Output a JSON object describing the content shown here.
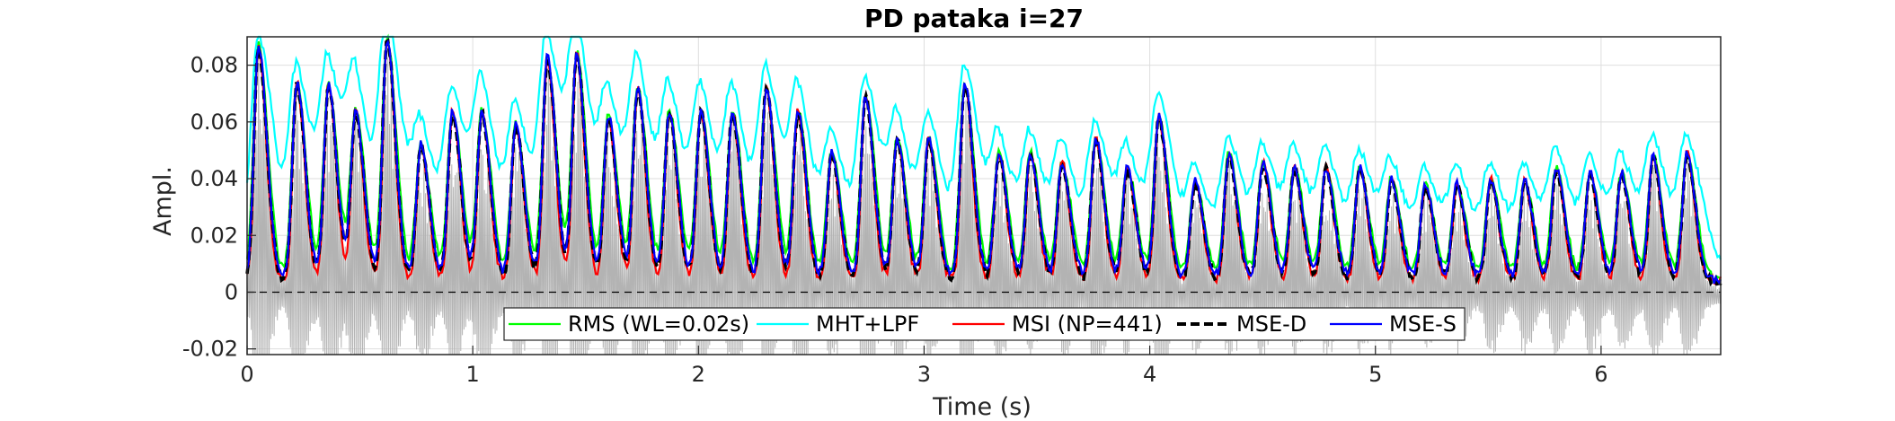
{
  "chart_data": {
    "type": "line",
    "title": "PD pataka i=27",
    "xlabel": "Time (s)",
    "ylabel": "Ampl.",
    "xlim": [
      0,
      6.53
    ],
    "ylim": [
      -0.022,
      0.09
    ],
    "x_ticks": [
      0,
      1,
      2,
      3,
      4,
      5,
      6
    ],
    "x_tick_labels": [
      "0",
      "1",
      "2",
      "3",
      "4",
      "5",
      "6"
    ],
    "y_ticks": [
      -0.02,
      0,
      0.02,
      0.04,
      0.06,
      0.08
    ],
    "y_tick_labels": [
      "-0.02",
      "0",
      "0.02",
      "0.04",
      "0.06",
      "0.08"
    ],
    "grid": true,
    "legend_position": "bottom-center",
    "zero_line": {
      "y": 0,
      "style": "dashed",
      "color": "#000000"
    },
    "background_waveform": {
      "color": "#b3b3b3",
      "description_visible": false
    },
    "syllable_peaks": {
      "times": [
        0.05,
        0.22,
        0.36,
        0.48,
        0.62,
        0.77,
        0.91,
        1.04,
        1.19,
        1.33,
        1.46,
        1.6,
        1.73,
        1.87,
        2.01,
        2.15,
        2.3,
        2.44,
        2.59,
        2.74,
        2.88,
        3.02,
        3.18,
        3.33,
        3.47,
        3.61,
        3.76,
        3.9,
        4.04,
        4.2,
        4.35,
        4.5,
        4.64,
        4.78,
        4.93,
        5.07,
        5.22,
        5.36,
        5.51,
        5.66,
        5.8,
        5.95,
        6.09,
        6.23,
        6.38
      ],
      "heights": [
        0.083,
        0.07,
        0.069,
        0.06,
        0.085,
        0.048,
        0.06,
        0.06,
        0.055,
        0.079,
        0.08,
        0.058,
        0.068,
        0.06,
        0.06,
        0.06,
        0.068,
        0.06,
        0.045,
        0.065,
        0.05,
        0.05,
        0.07,
        0.045,
        0.045,
        0.042,
        0.05,
        0.04,
        0.058,
        0.035,
        0.045,
        0.042,
        0.04,
        0.04,
        0.04,
        0.036,
        0.034,
        0.034,
        0.036,
        0.035,
        0.04,
        0.038,
        0.038,
        0.044,
        0.045
      ]
    },
    "series": [
      {
        "name": "RMS (WL=0.02s)",
        "color": "#00ff00",
        "dash": "solid",
        "smoothing": 1.0,
        "bias": 0.0
      },
      {
        "name": "MHT+LPF",
        "color": "#00ffff",
        "dash": "solid",
        "smoothing": 1.6,
        "bias": 0.003
      },
      {
        "name": "MSI (NP=441)",
        "color": "#ff0000",
        "dash": "solid",
        "smoothing": 0.8,
        "bias": 0.0
      },
      {
        "name": "MSE-D",
        "color": "#000000",
        "dash": "dashed",
        "smoothing": 0.9,
        "bias": -0.001
      },
      {
        "name": "MSE-S",
        "color": "#0000ff",
        "dash": "solid",
        "smoothing": 0.9,
        "bias": 0.0
      }
    ]
  }
}
